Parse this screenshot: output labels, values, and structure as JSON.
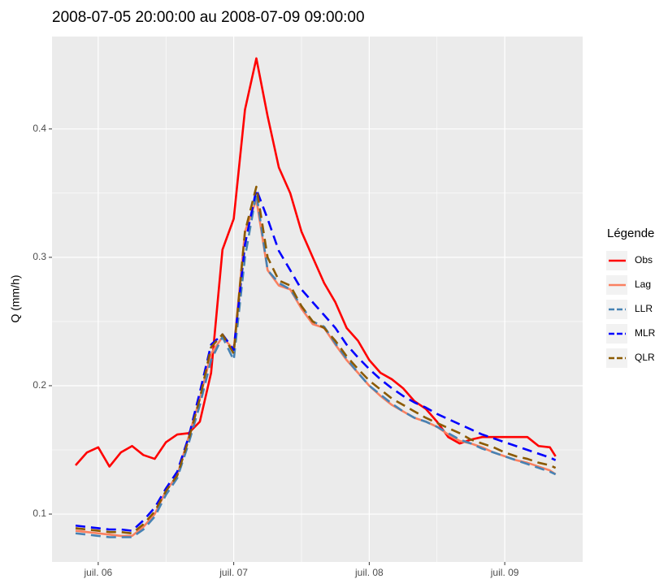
{
  "chart_data": {
    "type": "line",
    "title": "2008-07-05 20:00:00 au 2008-07-09 09:00:00",
    "y_label": "Q (mm/h)",
    "legend_title": "Légende",
    "legend_position": "right",
    "grid": true,
    "x": [
      5.833,
      5.917,
      6,
      6.083,
      6.167,
      6.25,
      6.333,
      6.417,
      6.5,
      6.583,
      6.667,
      6.75,
      6.833,
      6.917,
      7,
      7.083,
      7.167,
      7.25,
      7.333,
      7.417,
      7.5,
      7.583,
      7.667,
      7.75,
      7.833,
      7.917,
      8,
      8.083,
      8.167,
      8.25,
      8.333,
      8.417,
      8.5,
      8.583,
      8.667,
      8.75,
      8.833,
      8.917,
      9,
      9.083,
      9.167,
      9.25,
      9.333,
      9.375
    ],
    "xlim": [
      5.659,
      9.575
    ],
    "xticks": [
      {
        "value": 6,
        "label": "juil. 06"
      },
      {
        "value": 7,
        "label": "juil. 07"
      },
      {
        "value": 8,
        "label": "juil. 08"
      },
      {
        "value": 9,
        "label": "juil. 09"
      }
    ],
    "ylim": [
      0.0627,
      0.472
    ],
    "yticks": [
      {
        "value": 0.1,
        "label": "0.1"
      },
      {
        "value": 0.2,
        "label": "0.2"
      },
      {
        "value": 0.3,
        "label": "0.3"
      },
      {
        "value": 0.4,
        "label": "0.4"
      }
    ],
    "series": [
      {
        "name": "Obs",
        "color": "#ff0000",
        "linestyle": "solid",
        "values": [
          0.138,
          0.148,
          0.152,
          0.137,
          0.148,
          0.153,
          0.146,
          0.143,
          0.156,
          0.162,
          0.163,
          0.172,
          0.21,
          0.306,
          0.33,
          0.415,
          0.455,
          0.41,
          0.37,
          0.35,
          0.32,
          0.3,
          0.28,
          0.265,
          0.245,
          0.235,
          0.22,
          0.21,
          0.205,
          0.198,
          0.188,
          0.182,
          0.172,
          0.16,
          0.155,
          0.158,
          0.16,
          0.16,
          0.16,
          0.16,
          0.16,
          0.153,
          0.152,
          0.145
        ]
      },
      {
        "name": "Lag",
        "color": "#fa8060",
        "linestyle": "solid",
        "values": [
          0.087,
          0.086,
          0.085,
          0.084,
          0.083,
          0.083,
          0.09,
          0.1,
          0.118,
          0.13,
          0.16,
          0.19,
          0.225,
          0.238,
          0.228,
          0.32,
          0.345,
          0.29,
          0.278,
          0.275,
          0.26,
          0.248,
          0.245,
          0.232,
          0.22,
          0.21,
          0.2,
          0.192,
          0.185,
          0.18,
          0.175,
          0.172,
          0.168,
          0.162,
          0.157,
          0.155,
          0.152,
          0.148,
          0.145,
          0.142,
          0.14,
          0.137,
          0.134,
          0.131
        ]
      },
      {
        "name": "LLR",
        "color": "#4682b4",
        "linestyle": "dashed",
        "values": [
          0.085,
          0.084,
          0.083,
          0.082,
          0.082,
          0.082,
          0.088,
          0.098,
          0.115,
          0.128,
          0.155,
          0.185,
          0.22,
          0.238,
          0.22,
          0.3,
          0.35,
          0.29,
          0.28,
          0.275,
          0.262,
          0.25,
          0.246,
          0.233,
          0.221,
          0.21,
          0.2,
          0.193,
          0.186,
          0.18,
          0.175,
          0.172,
          0.168,
          0.163,
          0.158,
          0.155,
          0.151,
          0.148,
          0.145,
          0.142,
          0.139,
          0.136,
          0.133,
          0.131
        ]
      },
      {
        "name": "MLR",
        "color": "#0000ff",
        "linestyle": "dashed",
        "values": [
          0.091,
          0.09,
          0.089,
          0.088,
          0.088,
          0.087,
          0.095,
          0.105,
          0.12,
          0.133,
          0.16,
          0.195,
          0.232,
          0.24,
          0.228,
          0.31,
          0.353,
          0.33,
          0.305,
          0.29,
          0.275,
          0.265,
          0.255,
          0.245,
          0.232,
          0.222,
          0.213,
          0.205,
          0.198,
          0.192,
          0.187,
          0.183,
          0.178,
          0.174,
          0.17,
          0.166,
          0.162,
          0.159,
          0.156,
          0.153,
          0.15,
          0.147,
          0.144,
          0.142
        ]
      },
      {
        "name": "QLR",
        "color": "#8b5a00",
        "linestyle": "dashed",
        "values": [
          0.089,
          0.088,
          0.087,
          0.086,
          0.086,
          0.085,
          0.092,
          0.102,
          0.118,
          0.13,
          0.158,
          0.19,
          0.23,
          0.24,
          0.225,
          0.32,
          0.355,
          0.3,
          0.282,
          0.278,
          0.262,
          0.25,
          0.245,
          0.235,
          0.223,
          0.213,
          0.204,
          0.197,
          0.19,
          0.185,
          0.18,
          0.175,
          0.171,
          0.167,
          0.163,
          0.158,
          0.155,
          0.152,
          0.148,
          0.145,
          0.143,
          0.14,
          0.138,
          0.136
        ]
      }
    ]
  }
}
